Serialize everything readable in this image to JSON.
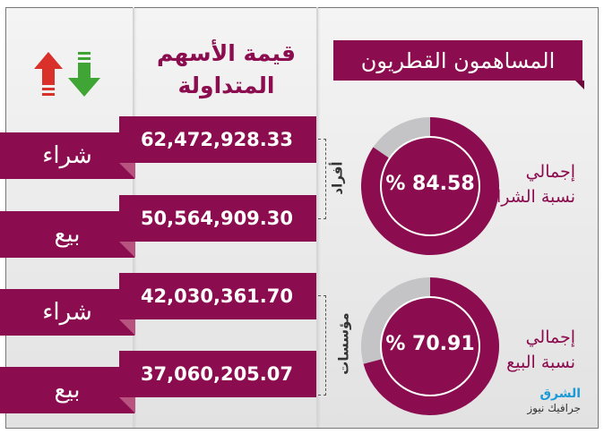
{
  "title": "المساهمون القطريون",
  "column_header": "قيمة الأسهم المتداولة",
  "groups": [
    {
      "label": "أفراد",
      "rows": [
        {
          "type": "شراء",
          "value": "62,472,928.33"
        },
        {
          "type": "بيع",
          "value": "50,564,909.30"
        }
      ]
    },
    {
      "label": "مؤسسات",
      "rows": [
        {
          "type": "شراء",
          "value": "42,030,361.70"
        },
        {
          "type": "بيع",
          "value": "37,060,205.07"
        }
      ]
    }
  ],
  "donuts": [
    {
      "label_line1": "إجمالي",
      "label_line2": "نسبة الشراء",
      "value_text": "% 84.58",
      "percent": 84.58
    },
    {
      "label_line1": "إجمالي",
      "label_line2": "نسبة البيع",
      "value_text": "% 70.91",
      "percent": 70.91
    }
  ],
  "logo": {
    "line1": "الشرق",
    "line2": "جرافيك نيوز"
  },
  "colors": {
    "maroon": "#8b0d4f",
    "gray": "#c4c4c6",
    "up_arrow": "#d9302a",
    "down_arrow": "#3fa535"
  },
  "icons": [
    "up-arrow-icon",
    "down-arrow-icon"
  ]
}
